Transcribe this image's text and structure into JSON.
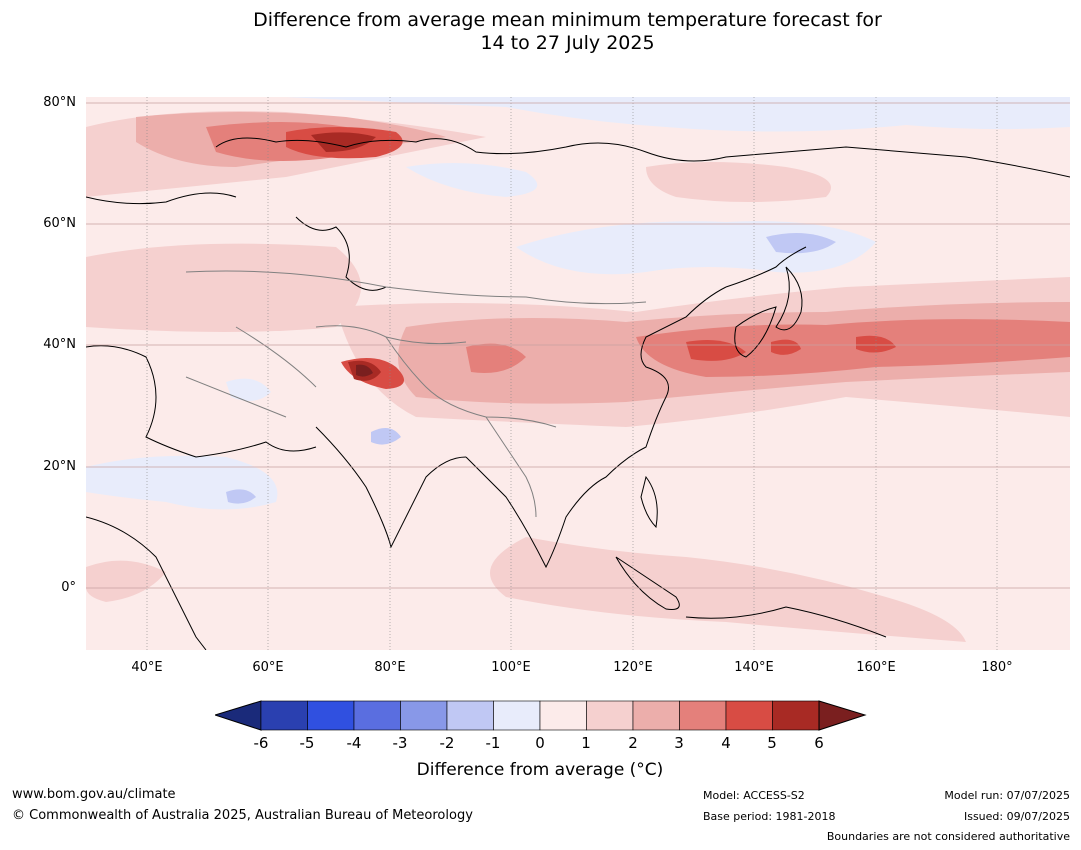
{
  "title_line1": "Difference from average mean minimum temperature forecast for",
  "title_line2": "14 to 27 July 2025",
  "map": {
    "projection": "plate-carree",
    "lon_range": [
      30,
      192
    ],
    "lat_range": [
      -10,
      80
    ],
    "lat_labels": [
      "80°N",
      "60°N",
      "40°N",
      "20°N",
      "0°"
    ],
    "lon_labels": [
      "40°E",
      "60°E",
      "80°E",
      "100°E",
      "120°E",
      "140°E",
      "160°E",
      "180°"
    ],
    "gridlines": true,
    "hotspots": [
      {
        "region": "Barents-Kara Sea coast",
        "lon": 78,
        "lat": 73,
        "anomaly": 4.5
      },
      {
        "region": "Western Tibetan Plateau",
        "lon": 76,
        "lat": 35,
        "anomaly": 6
      },
      {
        "region": "Sea of Japan / north-west Pacific",
        "lon": 147,
        "lat": 40,
        "anomaly": 4
      },
      {
        "region": "North Pacific",
        "lon": 160,
        "lat": 40,
        "anomaly": 4.2
      }
    ]
  },
  "colorbar": {
    "ticks": [
      "-6",
      "-5",
      "-4",
      "-3",
      "-2",
      "-1",
      "0",
      "1",
      "2",
      "3",
      "4",
      "5",
      "6"
    ],
    "colors": [
      "#1a2a7a",
      "#2a40b0",
      "#3050e0",
      "#5a6ee0",
      "#8898e8",
      "#c0c8f4",
      "#e8ecfb",
      "#fcebea",
      "#f5d0cf",
      "#ecaeab",
      "#e4807b",
      "#d84c44",
      "#a82a24",
      "#7a1f1f"
    ],
    "label": "Difference from average (°C)"
  },
  "footer": {
    "url": "www.bom.gov.au/climate",
    "copyright": "© Commonwealth of Australia 2025, Australian Bureau of Meteorology",
    "model": "Model: ACCESS-S2",
    "base_period": "Base period: 1981-2018",
    "model_run": "Model run: 07/07/2025",
    "issued": "Issued: 09/07/2025",
    "boundaries_note": "Boundaries are not considered authoritative"
  }
}
